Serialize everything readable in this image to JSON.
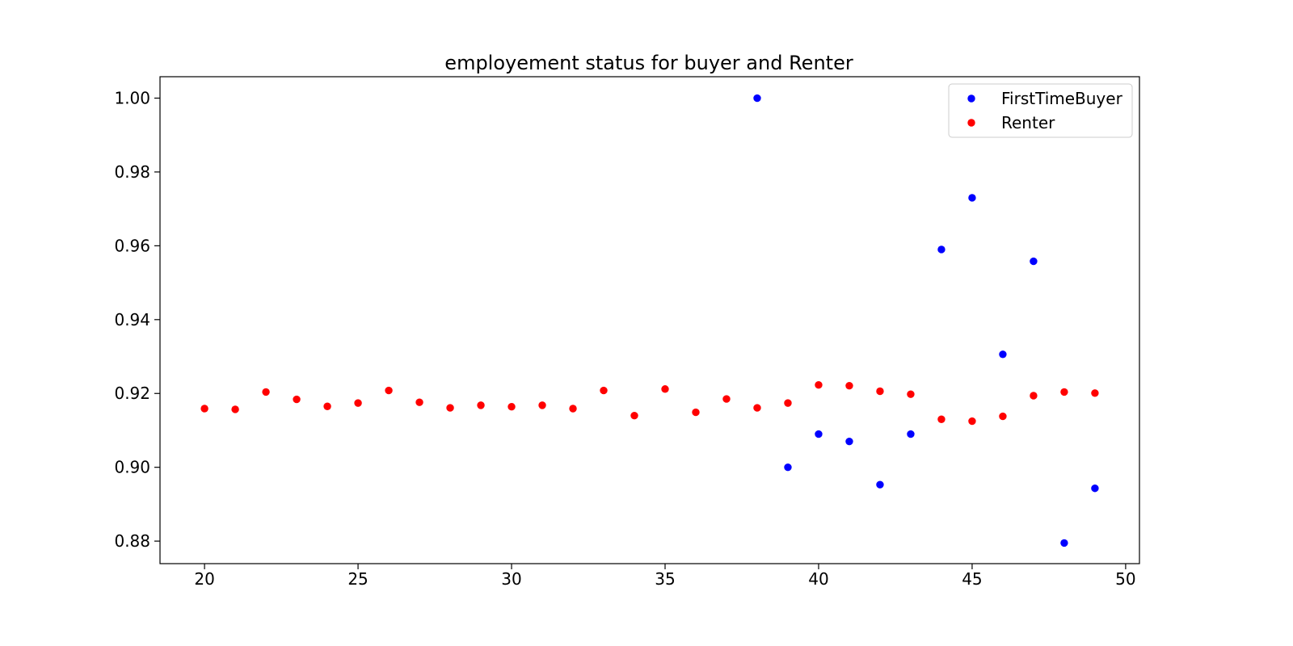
{
  "chart_data": {
    "type": "scatter",
    "title": "employement status for buyer and Renter",
    "xlabel": "",
    "ylabel": "",
    "xlim": [
      18.55,
      50.45
    ],
    "ylim": [
      0.8739,
      1.0058
    ],
    "xticks": [
      20,
      25,
      30,
      35,
      40,
      45,
      50
    ],
    "yticks": [
      0.88,
      0.9,
      0.92,
      0.94,
      0.96,
      0.98,
      1.0
    ],
    "xtick_labels": [
      "20",
      "25",
      "30",
      "35",
      "40",
      "45",
      "50"
    ],
    "ytick_labels": [
      "0.88",
      "0.90",
      "0.92",
      "0.94",
      "0.96",
      "0.98",
      "1.00"
    ],
    "grid": false,
    "legend_position": "top-right",
    "series": [
      {
        "name": "FirstTimeBuyer",
        "color": "#0000ff",
        "x": [
          38,
          39,
          40,
          41,
          42,
          43,
          44,
          45,
          46,
          47,
          48,
          49
        ],
        "y": [
          1.0,
          0.9,
          0.909,
          0.907,
          0.8953,
          0.909,
          0.959,
          0.973,
          0.9306,
          0.9558,
          0.8795,
          0.8943
        ]
      },
      {
        "name": "Renter",
        "color": "#ff0000",
        "x": [
          20,
          21,
          22,
          23,
          24,
          25,
          26,
          27,
          28,
          29,
          30,
          31,
          32,
          33,
          34,
          35,
          36,
          37,
          38,
          39,
          40,
          41,
          42,
          43,
          44,
          45,
          46,
          47,
          48,
          49
        ],
        "y": [
          0.9159,
          0.9157,
          0.9204,
          0.9184,
          0.9165,
          0.9174,
          0.9208,
          0.9176,
          0.9161,
          0.9168,
          0.9164,
          0.9168,
          0.9159,
          0.9208,
          0.914,
          0.9212,
          0.9149,
          0.9185,
          0.9161,
          0.9174,
          0.9223,
          0.9221,
          0.9206,
          0.9198,
          0.913,
          0.9125,
          0.9138,
          0.9194,
          0.9204,
          0.9201
        ]
      }
    ]
  }
}
